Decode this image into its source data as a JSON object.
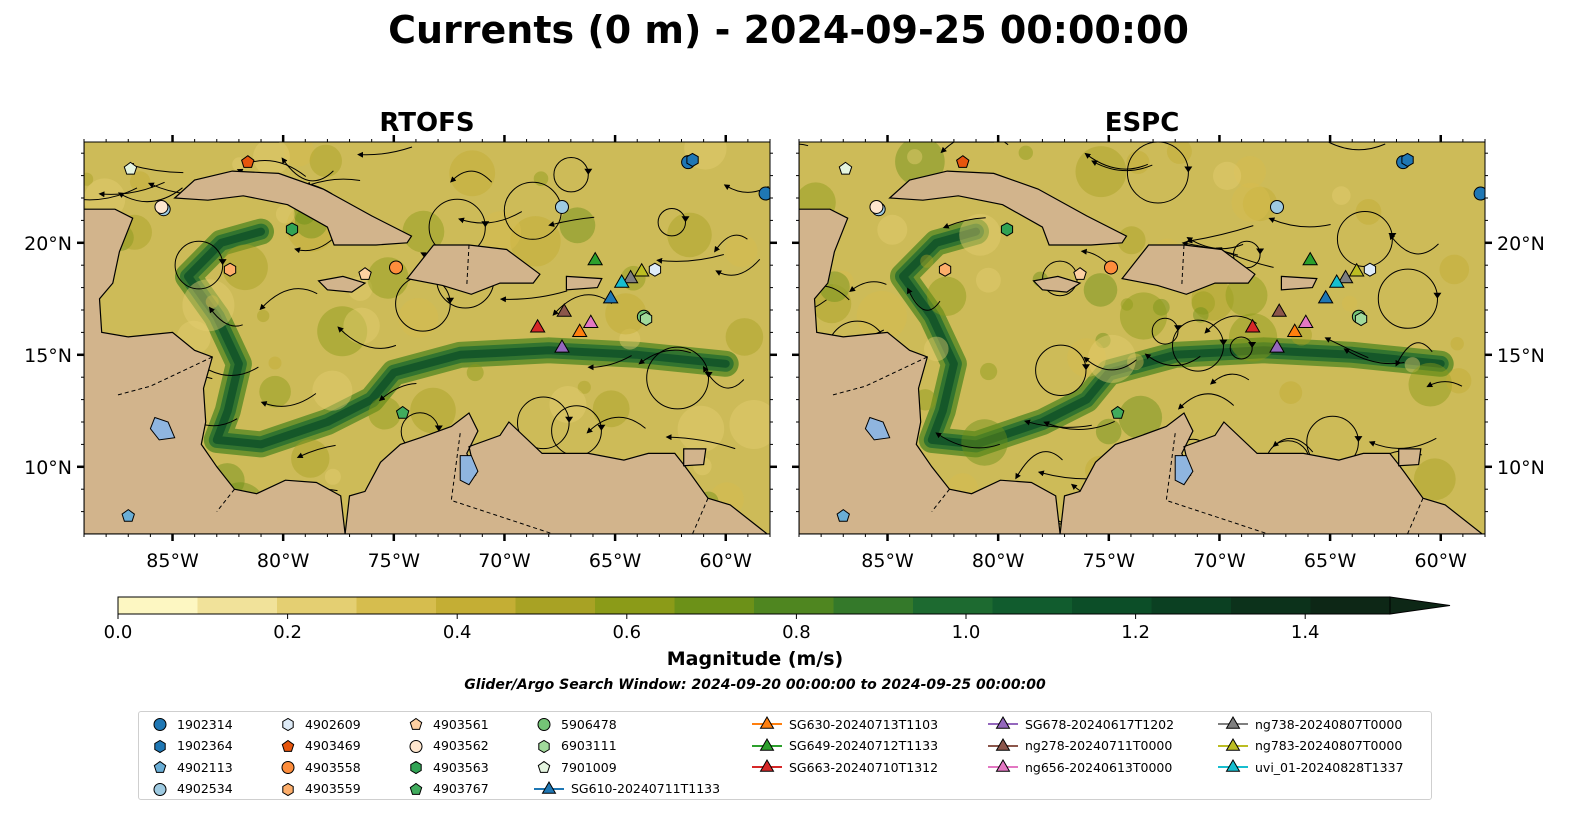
{
  "title": "Currents (0 m) - 2024-09-25 00:00:00",
  "panels": [
    {
      "title": "RTOFS"
    },
    {
      "title": "ESPC"
    }
  ],
  "axes": {
    "lon_ticks": [
      "85°W",
      "80°W",
      "75°W",
      "70°W",
      "65°W",
      "60°W"
    ],
    "lat_ticks": [
      "20°N",
      "15°N",
      "10°N"
    ]
  },
  "colorbar": {
    "label": "Magnitude (m/s)",
    "ticks": [
      "0.0",
      "0.2",
      "0.4",
      "0.6",
      "0.8",
      "1.0",
      "1.2",
      "1.4"
    ],
    "colors": [
      "#fdf7c2",
      "#f1e29a",
      "#e4cf72",
      "#d6bd4e",
      "#c4ae34",
      "#a8a224",
      "#8b9b18",
      "#6c9118",
      "#4f8620",
      "#34792a",
      "#1d6a30",
      "#115c2e",
      "#0c4e28",
      "#0b4022",
      "#0c321b",
      "#0d2716"
    ],
    "extend": "max"
  },
  "search_window": "Glider/Argo Search Window: 2024-09-20 00:00:00 to 2024-09-25 00:00:00",
  "legend": [
    {
      "label": "1902314",
      "marker": "circle",
      "color": "#1f77b4"
    },
    {
      "label": "1902364",
      "marker": "hexagon",
      "color": "#1f77b4"
    },
    {
      "label": "4902113",
      "marker": "pentagon",
      "color": "#6aaed6"
    },
    {
      "label": "4902534",
      "marker": "circle",
      "color": "#9ecae1"
    },
    {
      "label": "4902609",
      "marker": "hexagon",
      "color": "#deebf7"
    },
    {
      "label": "4903469",
      "marker": "pentagon",
      "color": "#e6550d"
    },
    {
      "label": "4903558",
      "marker": "circle",
      "color": "#fd8d3c"
    },
    {
      "label": "4903559",
      "marker": "hexagon",
      "color": "#fdae6b"
    },
    {
      "label": "4903561",
      "marker": "pentagon",
      "color": "#fdd0a2"
    },
    {
      "label": "4903562",
      "marker": "circle",
      "color": "#fee6ce"
    },
    {
      "label": "4903563",
      "marker": "hexagon",
      "color": "#31a354"
    },
    {
      "label": "4903767",
      "marker": "pentagon",
      "color": "#41ab5d"
    },
    {
      "label": "5906478",
      "marker": "circle",
      "color": "#74c476"
    },
    {
      "label": "6903111",
      "marker": "hexagon",
      "color": "#a1d99b"
    },
    {
      "label": "7901009",
      "marker": "pentagon",
      "color": "#e5f5e0"
    },
    {
      "label": "SG610-20240711T1133",
      "marker": "triangle",
      "color": "#1f77b4"
    },
    {
      "label": "SG630-20240713T1103",
      "marker": "triangle",
      "color": "#ff7f0e"
    },
    {
      "label": "SG649-20240712T1133",
      "marker": "triangle",
      "color": "#2ca02c"
    },
    {
      "label": "SG663-20240710T1312",
      "marker": "triangle",
      "color": "#d62728"
    },
    {
      "label": "SG678-20240617T1202",
      "marker": "triangle",
      "color": "#9467bd"
    },
    {
      "label": "ng278-20240711T0000",
      "marker": "triangle",
      "color": "#8c564b"
    },
    {
      "label": "ng656-20240613T0000",
      "marker": "triangle",
      "color": "#e377c2"
    },
    {
      "label": "ng738-20240807T0000",
      "marker": "triangle",
      "color": "#7f7f7f"
    },
    {
      "label": "ng783-20240807T0000",
      "marker": "triangle",
      "color": "#bcbd22"
    },
    {
      "label": "uvi_01-20240828T1337",
      "marker": "triangle",
      "color": "#17becf"
    }
  ],
  "map_data": {
    "extent": {
      "lon": [
        -89.0,
        -58.0
      ],
      "lat": [
        7.0,
        24.5
      ]
    },
    "ocean_color": "#cdbb58",
    "land_color": "#d2b48c",
    "lake_color": "#8fb5df",
    "markers": [
      {
        "id": "1902314",
        "lon": -61.7,
        "lat": 23.6
      },
      {
        "id": "1902314",
        "lon": -58.2,
        "lat": 22.2
      },
      {
        "id": "1902364",
        "lon": -61.5,
        "lat": 23.7
      },
      {
        "id": "4902113",
        "lon": -87.0,
        "lat": 7.8
      },
      {
        "id": "4902534",
        "lon": -85.4,
        "lat": 21.5
      },
      {
        "id": "4902534",
        "lon": -67.4,
        "lat": 21.6
      },
      {
        "id": "4902609",
        "lon": -63.2,
        "lat": 18.8
      },
      {
        "id": "4903469",
        "lon": -81.6,
        "lat": 23.6
      },
      {
        "id": "4903558",
        "lon": -74.9,
        "lat": 18.9
      },
      {
        "id": "4903559",
        "lon": -82.4,
        "lat": 18.8
      },
      {
        "id": "4903561",
        "lon": -76.3,
        "lat": 18.6
      },
      {
        "id": "4903562",
        "lon": -85.5,
        "lat": 21.6
      },
      {
        "id": "4903563",
        "lon": -79.6,
        "lat": 20.6
      },
      {
        "id": "4903767",
        "lon": -74.6,
        "lat": 12.4
      },
      {
        "id": "5906478",
        "lon": -63.7,
        "lat": 16.7
      },
      {
        "id": "6903111",
        "lon": -63.6,
        "lat": 16.6
      },
      {
        "id": "7901009",
        "lon": -86.9,
        "lat": 23.3
      },
      {
        "id": "SG610-20240711T1133",
        "lon": -65.2,
        "lat": 17.5
      },
      {
        "id": "SG630-20240713T1103",
        "lon": -66.6,
        "lat": 16.0
      },
      {
        "id": "SG649-20240712T1133",
        "lon": -65.9,
        "lat": 19.2
      },
      {
        "id": "SG663-20240710T1312",
        "lon": -68.5,
        "lat": 16.2
      },
      {
        "id": "SG678-20240617T1202",
        "lon": -67.4,
        "lat": 15.3
      },
      {
        "id": "ng278-20240711T0000",
        "lon": -67.3,
        "lat": 16.9
      },
      {
        "id": "ng656-20240613T0000",
        "lon": -66.1,
        "lat": 16.4
      },
      {
        "id": "ng738-20240807T0000",
        "lon": -64.3,
        "lat": 18.4
      },
      {
        "id": "ng783-20240807T0000",
        "lon": -63.8,
        "lat": 18.7
      },
      {
        "id": "uvi_01-20240828T1337",
        "lon": -64.7,
        "lat": 18.2
      }
    ]
  }
}
